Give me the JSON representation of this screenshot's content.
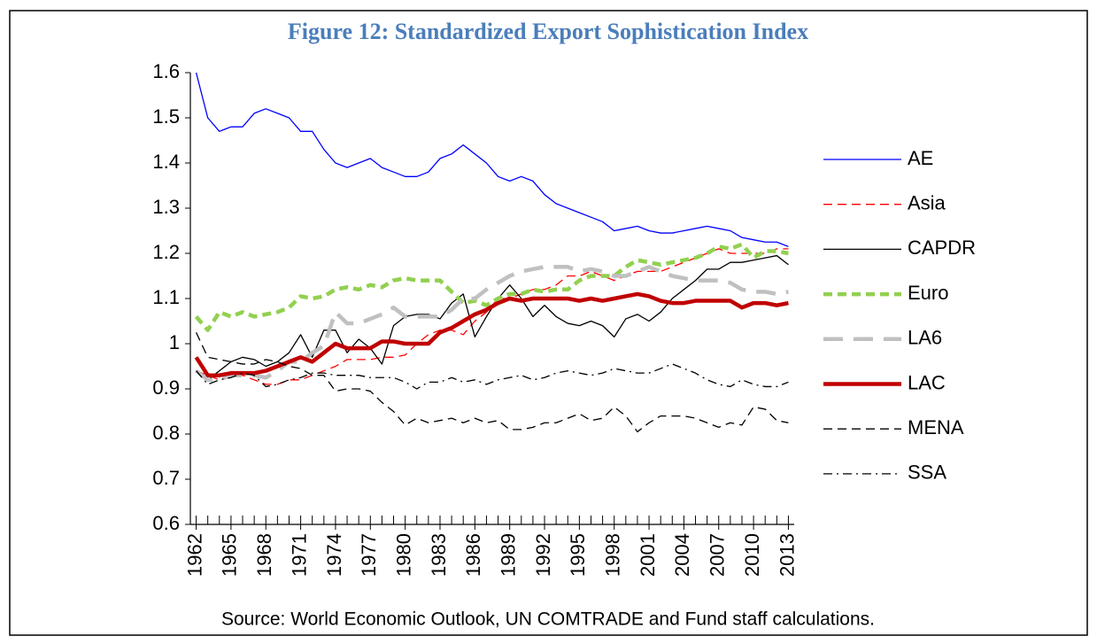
{
  "chart_data": {
    "type": "line",
    "title": "Figure 12: Standardized Export Sophistication Index",
    "source": "Source: World Economic Outlook, UN COMTRADE and Fund staff calculations.",
    "x": [
      1962,
      1963,
      1964,
      1965,
      1966,
      1967,
      1968,
      1969,
      1970,
      1971,
      1972,
      1973,
      1974,
      1975,
      1976,
      1977,
      1978,
      1979,
      1980,
      1981,
      1982,
      1983,
      1984,
      1985,
      1986,
      1987,
      1988,
      1989,
      1990,
      1991,
      1992,
      1993,
      1994,
      1995,
      1996,
      1997,
      1998,
      1999,
      2000,
      2001,
      2002,
      2003,
      2004,
      2005,
      2006,
      2007,
      2008,
      2009,
      2010,
      2011,
      2012,
      2013
    ],
    "xlim": [
      1961.5,
      2013.5
    ],
    "xticks": [
      1962,
      1965,
      1968,
      1971,
      1974,
      1977,
      1980,
      1983,
      1986,
      1989,
      1992,
      1995,
      1998,
      2001,
      2004,
      2007,
      2010,
      2013
    ],
    "ylim": [
      0.6,
      1.6
    ],
    "yticks": [
      0.6,
      0.7,
      0.8,
      0.9,
      1,
      1.1,
      1.2,
      1.3,
      1.4,
      1.5,
      1.6
    ],
    "grid": false,
    "legend": "right",
    "series": [
      {
        "name": "AE",
        "color": "#0000ff",
        "style": "solid",
        "weight": "thin",
        "values": [
          1.6,
          1.5,
          1.47,
          1.48,
          1.48,
          1.51,
          1.52,
          1.51,
          1.5,
          1.47,
          1.47,
          1.43,
          1.4,
          1.39,
          1.4,
          1.41,
          1.39,
          1.38,
          1.37,
          1.37,
          1.38,
          1.41,
          1.42,
          1.44,
          1.42,
          1.4,
          1.37,
          1.36,
          1.37,
          1.36,
          1.33,
          1.31,
          1.3,
          1.29,
          1.28,
          1.27,
          1.25,
          1.255,
          1.26,
          1.25,
          1.245,
          1.245,
          1.25,
          1.255,
          1.26,
          1.255,
          1.25,
          1.235,
          1.23,
          1.225,
          1.225,
          1.215
        ]
      },
      {
        "name": "Asia",
        "color": "#ff0000",
        "style": "dashed",
        "weight": "thin",
        "values": [
          0.94,
          0.93,
          0.92,
          0.93,
          0.93,
          0.92,
          0.91,
          0.91,
          0.92,
          0.92,
          0.93,
          0.94,
          0.95,
          0.965,
          0.965,
          0.965,
          0.97,
          0.97,
          0.975,
          1.0,
          1.02,
          1.03,
          1.03,
          1.02,
          1.05,
          1.07,
          1.1,
          1.1,
          1.11,
          1.12,
          1.12,
          1.13,
          1.15,
          1.15,
          1.16,
          1.15,
          1.14,
          1.15,
          1.16,
          1.16,
          1.16,
          1.17,
          1.18,
          1.19,
          1.2,
          1.21,
          1.2,
          1.2,
          1.2,
          1.2,
          1.21,
          1.21
        ]
      },
      {
        "name": "CAPDR",
        "color": "#000000",
        "style": "solid",
        "weight": "thin",
        "values": [
          0.94,
          0.92,
          0.94,
          0.96,
          0.97,
          0.965,
          0.95,
          0.96,
          0.98,
          1.02,
          0.97,
          1.03,
          1.03,
          0.98,
          1.01,
          0.99,
          0.955,
          1.04,
          1.06,
          1.065,
          1.065,
          1.055,
          1.09,
          1.11,
          1.015,
          1.06,
          1.1,
          1.13,
          1.1,
          1.06,
          1.085,
          1.06,
          1.045,
          1.04,
          1.05,
          1.04,
          1.015,
          1.055,
          1.065,
          1.05,
          1.07,
          1.1,
          1.12,
          1.14,
          1.165,
          1.165,
          1.18,
          1.18,
          1.185,
          1.19,
          1.195,
          1.175
        ]
      },
      {
        "name": "Euro",
        "color": "#92d050",
        "style": "dashed",
        "weight": "thick",
        "values": [
          1.06,
          1.03,
          1.07,
          1.06,
          1.07,
          1.06,
          1.065,
          1.07,
          1.08,
          1.105,
          1.1,
          1.105,
          1.12,
          1.125,
          1.12,
          1.13,
          1.125,
          1.14,
          1.145,
          1.14,
          1.14,
          1.14,
          1.115,
          1.09,
          1.095,
          1.085,
          1.1,
          1.11,
          1.11,
          1.12,
          1.115,
          1.12,
          1.12,
          1.14,
          1.15,
          1.15,
          1.15,
          1.17,
          1.185,
          1.18,
          1.175,
          1.18,
          1.185,
          1.19,
          1.2,
          1.215,
          1.21,
          1.22,
          1.19,
          1.205,
          1.205,
          1.2
        ]
      },
      {
        "name": "LA6",
        "color": "#c0c0c0",
        "style": "longdash",
        "weight": "thick",
        "values": [
          0.94,
          0.92,
          0.92,
          0.93,
          0.93,
          0.93,
          0.925,
          0.94,
          0.96,
          0.96,
          0.98,
          0.995,
          1.07,
          1.045,
          1.045,
          1.055,
          1.065,
          1.08,
          1.06,
          1.06,
          1.06,
          1.06,
          1.075,
          1.1,
          1.1,
          1.12,
          1.135,
          1.15,
          1.16,
          1.165,
          1.17,
          1.17,
          1.17,
          1.16,
          1.165,
          1.16,
          1.15,
          1.15,
          1.16,
          1.17,
          1.16,
          1.15,
          1.145,
          1.14,
          1.14,
          1.14,
          1.135,
          1.12,
          1.115,
          1.115,
          1.11,
          1.115
        ]
      },
      {
        "name": "LAC",
        "color": "#c00000",
        "style": "solid",
        "weight": "thick",
        "values": [
          0.97,
          0.93,
          0.93,
          0.935,
          0.935,
          0.935,
          0.94,
          0.95,
          0.96,
          0.97,
          0.96,
          0.98,
          1.0,
          0.99,
          0.99,
          0.99,
          1.005,
          1.005,
          1.0,
          1.0,
          1.0,
          1.025,
          1.035,
          1.05,
          1.065,
          1.075,
          1.09,
          1.1,
          1.095,
          1.1,
          1.1,
          1.1,
          1.1,
          1.095,
          1.1,
          1.095,
          1.1,
          1.105,
          1.11,
          1.105,
          1.095,
          1.09,
          1.09,
          1.095,
          1.095,
          1.095,
          1.095,
          1.08,
          1.09,
          1.09,
          1.085,
          1.09
        ]
      },
      {
        "name": "MENA",
        "color": "#000000",
        "style": "dashed",
        "weight": "thin",
        "values": [
          1.025,
          0.97,
          0.965,
          0.96,
          0.955,
          0.955,
          0.965,
          0.96,
          0.95,
          0.945,
          0.93,
          0.93,
          0.895,
          0.9,
          0.9,
          0.895,
          0.87,
          0.85,
          0.82,
          0.835,
          0.825,
          0.83,
          0.835,
          0.825,
          0.835,
          0.825,
          0.83,
          0.81,
          0.81,
          0.815,
          0.825,
          0.825,
          0.835,
          0.845,
          0.83,
          0.835,
          0.86,
          0.84,
          0.805,
          0.825,
          0.84,
          0.84,
          0.84,
          0.835,
          0.825,
          0.815,
          0.825,
          0.82,
          0.86,
          0.855,
          0.83,
          0.825
        ]
      },
      {
        "name": "SSA",
        "color": "#000000",
        "style": "dashdot",
        "weight": "thin",
        "values": [
          0.94,
          0.91,
          0.92,
          0.925,
          0.935,
          0.93,
          0.905,
          0.91,
          0.92,
          0.925,
          0.935,
          0.935,
          0.93,
          0.93,
          0.93,
          0.925,
          0.925,
          0.925,
          0.915,
          0.9,
          0.915,
          0.915,
          0.925,
          0.915,
          0.92,
          0.91,
          0.92,
          0.925,
          0.93,
          0.92,
          0.925,
          0.935,
          0.94,
          0.935,
          0.93,
          0.935,
          0.945,
          0.94,
          0.935,
          0.935,
          0.945,
          0.955,
          0.945,
          0.935,
          0.92,
          0.91,
          0.905,
          0.92,
          0.91,
          0.905,
          0.905,
          0.915
        ]
      }
    ]
  }
}
